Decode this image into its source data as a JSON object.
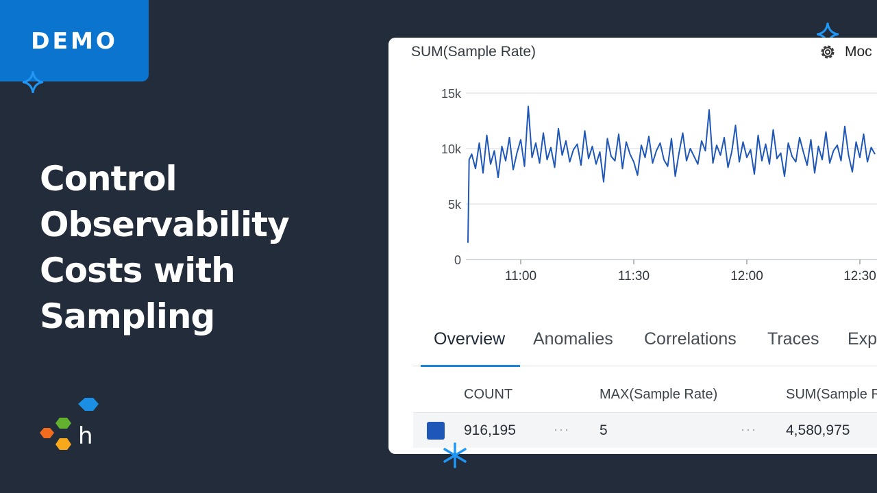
{
  "badge": {
    "label": "DEMO"
  },
  "headline": {
    "lines": [
      "Control",
      "Observability",
      "Costs with",
      "Sampling"
    ]
  },
  "colors": {
    "background": "#222c3a",
    "badge": "#0a74cf",
    "series_line": "#1f57b8",
    "tab_accent": "#1a86d6",
    "logo_orange": "#f26c1f",
    "logo_green": "#62b22f",
    "logo_yellow": "#f7a81b",
    "logo_blue": "#1a8fe3"
  },
  "icons": {
    "sparkle": "four-point-star",
    "settings": "gear-icon",
    "logo": "honeycomb-hexagon-logo"
  },
  "logo": {
    "letter": "h"
  },
  "chart": {
    "title": "SUM(Sample Rate)",
    "mode_label": "Moc"
  },
  "chart_data": {
    "type": "line",
    "title": "SUM(Sample Rate)",
    "y_ticks": [
      "15k",
      "10k",
      "5k",
      "0"
    ],
    "x_ticks": [
      "11:00",
      "11:30",
      "12:00",
      "12:30"
    ],
    "ylim": [
      0,
      15000
    ],
    "xlim_minutes": [
      -14,
      94
    ],
    "x_tick_minutes": [
      0,
      30,
      60,
      90
    ],
    "grid": true,
    "series": [
      {
        "x_minutes": [
          -14,
          -13.7,
          -13,
          -12,
          -11,
          -10,
          -9,
          -8,
          -7,
          -6,
          -5,
          -4,
          -3,
          -2,
          -1,
          0,
          1,
          2,
          3,
          4,
          5,
          6,
          7,
          8,
          9,
          10,
          11,
          12,
          13,
          14,
          15,
          16,
          17,
          18,
          19,
          20,
          21,
          22,
          23,
          24,
          25,
          26,
          27,
          28,
          29,
          30,
          31,
          32,
          33,
          34,
          35,
          36,
          37,
          38,
          39,
          40,
          41,
          42,
          43,
          44,
          45,
          46,
          47,
          48,
          49,
          50,
          51,
          52,
          53,
          54,
          55,
          56,
          57,
          58,
          59,
          60,
          61,
          62,
          63,
          64,
          65,
          66,
          67,
          68,
          69,
          70,
          71,
          72,
          73,
          74,
          75,
          76,
          77,
          78,
          79,
          80,
          81,
          82,
          83,
          84,
          85,
          86,
          87,
          88,
          89,
          90,
          91,
          92,
          93,
          94
        ],
        "values": [
          1500,
          9000,
          9500,
          8200,
          10500,
          7800,
          11200,
          8600,
          9800,
          7400,
          10200,
          8900,
          11000,
          8100,
          9600,
          10800,
          8400,
          13800,
          9200,
          10500,
          8700,
          11400,
          9000,
          10100,
          8300,
          11800,
          9400,
          10700,
          8800,
          9900,
          10400,
          8500,
          11600,
          9100,
          10200,
          8600,
          9700,
          7000,
          10900,
          9300,
          8900,
          11300,
          8200,
          10600,
          9500,
          8800,
          7600,
          10300,
          9200,
          11100,
          8700,
          9800,
          10500,
          9000,
          8400,
          10900,
          7500,
          9600,
          11400,
          8900,
          10000,
          9300,
          8600,
          10700,
          9800,
          13500,
          8700,
          10300,
          9400,
          11000,
          8300,
          9700,
          12100,
          8800,
          10600,
          9200,
          9900,
          7700,
          11200,
          8900,
          10400,
          8600,
          11700,
          9100,
          9600,
          7500,
          10500,
          9300,
          8800,
          11000,
          9700,
          8500,
          10800,
          7800,
          10200,
          9000,
          11500,
          8700,
          9800,
          10300,
          8900,
          12000,
          9400,
          7900,
          10600,
          9200,
          11300,
          8800,
          10100,
          9500
        ]
      }
    ]
  },
  "tabs": [
    {
      "label": "Overview",
      "active": true
    },
    {
      "label": "Anomalies",
      "active": false
    },
    {
      "label": "Correlations",
      "active": false
    },
    {
      "label": "Traces",
      "active": false
    },
    {
      "label": "Exp",
      "active": false
    }
  ],
  "table": {
    "headers": [
      "COUNT",
      "MAX(Sample Rate)",
      "SUM(Sample R"
    ],
    "row": {
      "count": "916,195",
      "max": "5",
      "sum": "4,580,975",
      "separator": "···",
      "color": "#1f57b8"
    }
  }
}
